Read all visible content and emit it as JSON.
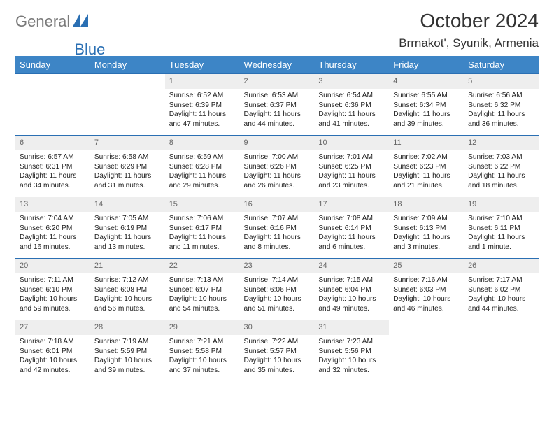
{
  "brand": {
    "general": "General",
    "blue": "Blue"
  },
  "title": "October 2024",
  "location": "Brrnakot', Syunik, Armenia",
  "theme": {
    "header_bg": "#3d85c6",
    "header_fg": "#ffffff",
    "daynum_bg": "#eeeeee",
    "border": "#2a6fb3",
    "text": "#222222",
    "logo_gray": "#7a7a7a",
    "logo_blue": "#2a6fb3"
  },
  "weekdays": [
    "Sunday",
    "Monday",
    "Tuesday",
    "Wednesday",
    "Thursday",
    "Friday",
    "Saturday"
  ],
  "weeks": [
    [
      {
        "n": "",
        "sr": "",
        "ss": "",
        "dl": ""
      },
      {
        "n": "",
        "sr": "",
        "ss": "",
        "dl": ""
      },
      {
        "n": "1",
        "sr": "Sunrise: 6:52 AM",
        "ss": "Sunset: 6:39 PM",
        "dl": "Daylight: 11 hours and 47 minutes."
      },
      {
        "n": "2",
        "sr": "Sunrise: 6:53 AM",
        "ss": "Sunset: 6:37 PM",
        "dl": "Daylight: 11 hours and 44 minutes."
      },
      {
        "n": "3",
        "sr": "Sunrise: 6:54 AM",
        "ss": "Sunset: 6:36 PM",
        "dl": "Daylight: 11 hours and 41 minutes."
      },
      {
        "n": "4",
        "sr": "Sunrise: 6:55 AM",
        "ss": "Sunset: 6:34 PM",
        "dl": "Daylight: 11 hours and 39 minutes."
      },
      {
        "n": "5",
        "sr": "Sunrise: 6:56 AM",
        "ss": "Sunset: 6:32 PM",
        "dl": "Daylight: 11 hours and 36 minutes."
      }
    ],
    [
      {
        "n": "6",
        "sr": "Sunrise: 6:57 AM",
        "ss": "Sunset: 6:31 PM",
        "dl": "Daylight: 11 hours and 34 minutes."
      },
      {
        "n": "7",
        "sr": "Sunrise: 6:58 AM",
        "ss": "Sunset: 6:29 PM",
        "dl": "Daylight: 11 hours and 31 minutes."
      },
      {
        "n": "8",
        "sr": "Sunrise: 6:59 AM",
        "ss": "Sunset: 6:28 PM",
        "dl": "Daylight: 11 hours and 29 minutes."
      },
      {
        "n": "9",
        "sr": "Sunrise: 7:00 AM",
        "ss": "Sunset: 6:26 PM",
        "dl": "Daylight: 11 hours and 26 minutes."
      },
      {
        "n": "10",
        "sr": "Sunrise: 7:01 AM",
        "ss": "Sunset: 6:25 PM",
        "dl": "Daylight: 11 hours and 23 minutes."
      },
      {
        "n": "11",
        "sr": "Sunrise: 7:02 AM",
        "ss": "Sunset: 6:23 PM",
        "dl": "Daylight: 11 hours and 21 minutes."
      },
      {
        "n": "12",
        "sr": "Sunrise: 7:03 AM",
        "ss": "Sunset: 6:22 PM",
        "dl": "Daylight: 11 hours and 18 minutes."
      }
    ],
    [
      {
        "n": "13",
        "sr": "Sunrise: 7:04 AM",
        "ss": "Sunset: 6:20 PM",
        "dl": "Daylight: 11 hours and 16 minutes."
      },
      {
        "n": "14",
        "sr": "Sunrise: 7:05 AM",
        "ss": "Sunset: 6:19 PM",
        "dl": "Daylight: 11 hours and 13 minutes."
      },
      {
        "n": "15",
        "sr": "Sunrise: 7:06 AM",
        "ss": "Sunset: 6:17 PM",
        "dl": "Daylight: 11 hours and 11 minutes."
      },
      {
        "n": "16",
        "sr": "Sunrise: 7:07 AM",
        "ss": "Sunset: 6:16 PM",
        "dl": "Daylight: 11 hours and 8 minutes."
      },
      {
        "n": "17",
        "sr": "Sunrise: 7:08 AM",
        "ss": "Sunset: 6:14 PM",
        "dl": "Daylight: 11 hours and 6 minutes."
      },
      {
        "n": "18",
        "sr": "Sunrise: 7:09 AM",
        "ss": "Sunset: 6:13 PM",
        "dl": "Daylight: 11 hours and 3 minutes."
      },
      {
        "n": "19",
        "sr": "Sunrise: 7:10 AM",
        "ss": "Sunset: 6:11 PM",
        "dl": "Daylight: 11 hours and 1 minute."
      }
    ],
    [
      {
        "n": "20",
        "sr": "Sunrise: 7:11 AM",
        "ss": "Sunset: 6:10 PM",
        "dl": "Daylight: 10 hours and 59 minutes."
      },
      {
        "n": "21",
        "sr": "Sunrise: 7:12 AM",
        "ss": "Sunset: 6:08 PM",
        "dl": "Daylight: 10 hours and 56 minutes."
      },
      {
        "n": "22",
        "sr": "Sunrise: 7:13 AM",
        "ss": "Sunset: 6:07 PM",
        "dl": "Daylight: 10 hours and 54 minutes."
      },
      {
        "n": "23",
        "sr": "Sunrise: 7:14 AM",
        "ss": "Sunset: 6:06 PM",
        "dl": "Daylight: 10 hours and 51 minutes."
      },
      {
        "n": "24",
        "sr": "Sunrise: 7:15 AM",
        "ss": "Sunset: 6:04 PM",
        "dl": "Daylight: 10 hours and 49 minutes."
      },
      {
        "n": "25",
        "sr": "Sunrise: 7:16 AM",
        "ss": "Sunset: 6:03 PM",
        "dl": "Daylight: 10 hours and 46 minutes."
      },
      {
        "n": "26",
        "sr": "Sunrise: 7:17 AM",
        "ss": "Sunset: 6:02 PM",
        "dl": "Daylight: 10 hours and 44 minutes."
      }
    ],
    [
      {
        "n": "27",
        "sr": "Sunrise: 7:18 AM",
        "ss": "Sunset: 6:01 PM",
        "dl": "Daylight: 10 hours and 42 minutes."
      },
      {
        "n": "28",
        "sr": "Sunrise: 7:19 AM",
        "ss": "Sunset: 5:59 PM",
        "dl": "Daylight: 10 hours and 39 minutes."
      },
      {
        "n": "29",
        "sr": "Sunrise: 7:21 AM",
        "ss": "Sunset: 5:58 PM",
        "dl": "Daylight: 10 hours and 37 minutes."
      },
      {
        "n": "30",
        "sr": "Sunrise: 7:22 AM",
        "ss": "Sunset: 5:57 PM",
        "dl": "Daylight: 10 hours and 35 minutes."
      },
      {
        "n": "31",
        "sr": "Sunrise: 7:23 AM",
        "ss": "Sunset: 5:56 PM",
        "dl": "Daylight: 10 hours and 32 minutes."
      },
      {
        "n": "",
        "sr": "",
        "ss": "",
        "dl": ""
      },
      {
        "n": "",
        "sr": "",
        "ss": "",
        "dl": ""
      }
    ]
  ]
}
